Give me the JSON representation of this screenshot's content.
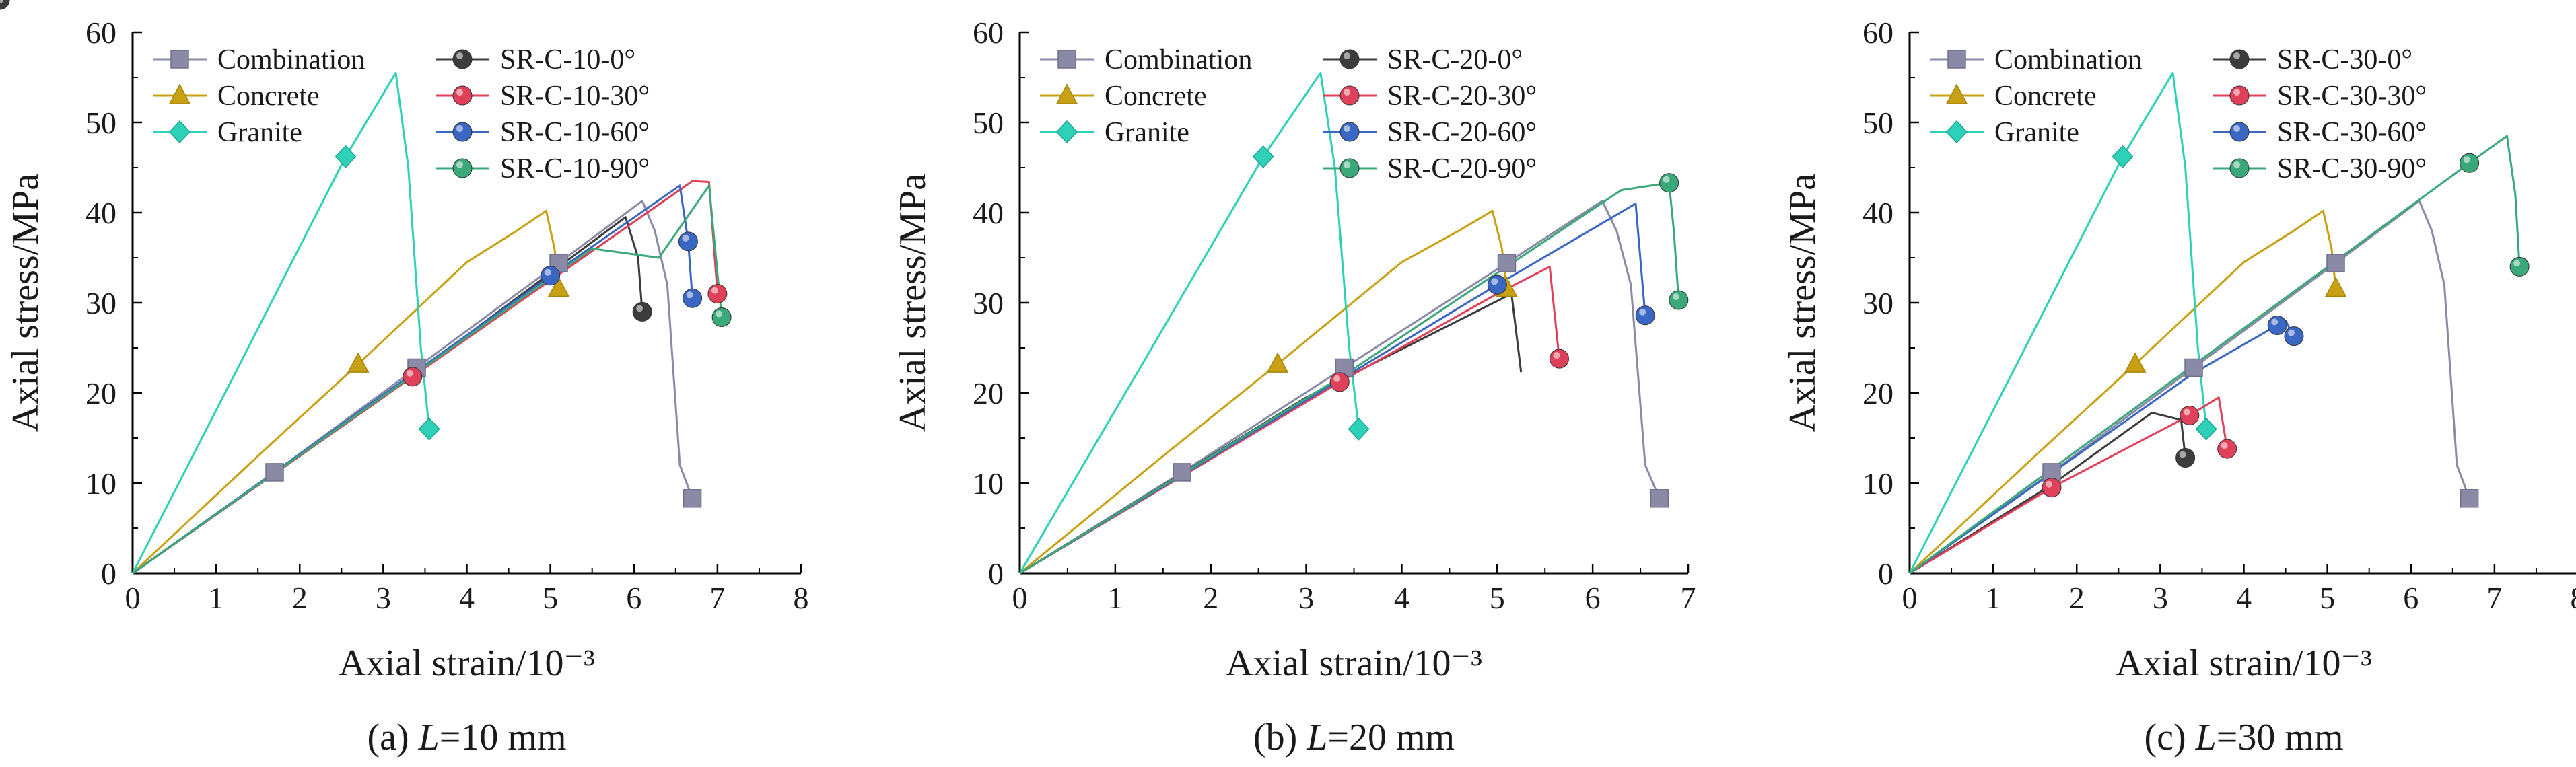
{
  "chart_data": [
    {
      "type": "line",
      "caption_prefix": "(a) ",
      "caption_italic": "L",
      "caption_suffix": "=10 mm",
      "xlabel": "Axial strain/10⁻³",
      "ylabel": "Axial stress/MPa",
      "xlim": [
        0,
        8
      ],
      "ylim": [
        0,
        60
      ],
      "xticks": [
        "0",
        "1",
        "2",
        "3",
        "4",
        "5",
        "6",
        "7",
        "8"
      ],
      "yticks": [
        "0",
        "10",
        "20",
        "30",
        "40",
        "50",
        "60"
      ],
      "legend": [
        "Combination",
        "Concrete",
        "Granite",
        "SR-C-10-0°",
        "SR-C-10-30°",
        "SR-C-10-60°",
        "SR-C-10-90°"
      ],
      "series": [
        {
          "name": "Combination",
          "color": "#8a8aa6",
          "marker": "square",
          "x": [
            0,
            1.7,
            3.4,
            5.1,
            6.1,
            6.25,
            6.4,
            6.55,
            6.7
          ],
          "y": [
            0,
            11.2,
            22.8,
            34.4,
            41.3,
            38,
            32,
            12,
            8.3
          ],
          "marker_index": [
            1,
            2,
            3,
            8
          ]
        },
        {
          "name": "Concrete",
          "color": "#c7a013",
          "marker": "triangle",
          "x": [
            0,
            1.5,
            2.7,
            4,
            4.6,
            4.95,
            5.05,
            5.1
          ],
          "y": [
            0,
            13,
            23.2,
            34.5,
            38,
            40.2,
            36,
            31.6
          ],
          "marker_index": [
            2,
            7
          ]
        },
        {
          "name": "Granite",
          "color": "#2ed1b8",
          "marker": "diamond",
          "x": [
            0,
            1.3,
            2.55,
            3.15,
            3.3,
            3.45,
            3.55
          ],
          "y": [
            0,
            23.5,
            46.2,
            55.5,
            45,
            25,
            16
          ],
          "marker_index": [
            2,
            6
          ]
        },
        {
          "name": "SR-C-10-0°",
          "color": "#3c3c3c",
          "marker": "ball",
          "x": [
            0,
            3,
            5.9,
            6.05,
            6.1
          ],
          "y": [
            0,
            19.5,
            39.5,
            35,
            29
          ],
          "marker_index": [
            4
          ]
        },
        {
          "name": "SR-C-10-30°",
          "color": "#e0415a",
          "marker": "ball",
          "x": [
            0,
            3.35,
            6.7,
            6.9,
            7
          ],
          "y": [
            0,
            21.8,
            43.5,
            43.4,
            31
          ],
          "marker_index": [
            1,
            4
          ]
        },
        {
          "name": "SR-C-10-60°",
          "color": "#3a66c4",
          "marker": "ball",
          "x": [
            0,
            5,
            6.55,
            6.65,
            6.7
          ],
          "y": [
            0,
            33,
            43,
            36.8,
            30.5
          ],
          "marker_index": [
            1,
            3,
            4
          ]
        },
        {
          "name": "SR-C-10-90°",
          "color": "#3aa878",
          "marker": "ball",
          "x": [
            0,
            5.5,
            6.3,
            6.9,
            7.05
          ],
          "y": [
            0,
            36,
            35,
            43,
            28.4
          ],
          "marker_index": [
            4
          ]
        }
      ]
    },
    {
      "type": "line",
      "caption_prefix": "(b) ",
      "caption_italic": "L",
      "caption_suffix": "=20 mm",
      "xlabel": "Axial strain/10⁻³",
      "ylabel": "Axial stress/MPa",
      "xlim": [
        0,
        7
      ],
      "ylim": [
        0,
        60
      ],
      "xticks": [
        "0",
        "1",
        "2",
        "3",
        "4",
        "5",
        "6",
        "7"
      ],
      "yticks": [
        "0",
        "10",
        "20",
        "30",
        "40",
        "50",
        "60"
      ],
      "legend": [
        "Combination",
        "Concrete",
        "Granite",
        "SR-C-20-0°",
        "SR-C-20-30°",
        "SR-C-20-60°",
        "SR-C-20-90°"
      ],
      "series": [
        {
          "name": "Combination",
          "color": "#8a8aa6",
          "marker": "square",
          "x": [
            0,
            1.7,
            3.4,
            5.1,
            6.1,
            6.25,
            6.4,
            6.55,
            6.7
          ],
          "y": [
            0,
            11.2,
            22.8,
            34.4,
            41.3,
            38,
            32,
            12,
            8.3
          ],
          "marker_index": [
            1,
            2,
            3,
            8
          ]
        },
        {
          "name": "Concrete",
          "color": "#c7a013",
          "marker": "triangle",
          "x": [
            0,
            1.5,
            2.7,
            4,
            4.6,
            4.95,
            5.05,
            5.1
          ],
          "y": [
            0,
            13,
            23.2,
            34.5,
            38,
            40.2,
            36,
            31.6
          ],
          "marker_index": [
            2,
            7
          ]
        },
        {
          "name": "Granite",
          "color": "#2ed1b8",
          "marker": "diamond",
          "x": [
            0,
            1.3,
            2.55,
            3.15,
            3.3,
            3.45,
            3.55
          ],
          "y": [
            0,
            23.5,
            46.2,
            55.5,
            45,
            25,
            16
          ],
          "marker_index": [
            2,
            6
          ]
        },
        {
          "name": "SR-C-20-0°",
          "color": "#3c3c3c",
          "marker": "ball",
          "x": [
            0,
            3,
            5.15,
            5.25
          ],
          "y": [
            0,
            19.5,
            31,
            22.3
          ],
          "marker_index": [
            4
          ]
        },
        {
          "name": "SR-C-20-30°",
          "color": "#e0415a",
          "marker": "ball",
          "x": [
            0,
            3.35,
            5,
            5.55,
            5.65
          ],
          "y": [
            0,
            21.2,
            31,
            34,
            23.8
          ],
          "marker_index": [
            1,
            4
          ]
        },
        {
          "name": "SR-C-20-60°",
          "color": "#3a66c4",
          "marker": "ball",
          "x": [
            0,
            5,
            6.45,
            6.55
          ],
          "y": [
            0,
            32,
            41,
            28.6
          ],
          "marker_index": [
            1,
            3
          ]
        },
        {
          "name": "SR-C-20-90°",
          "color": "#3aa878",
          "marker": "ball",
          "x": [
            0,
            3.4,
            6.3,
            6.8,
            6.85,
            6.9
          ],
          "y": [
            0,
            22,
            42.5,
            43.3,
            38,
            30.3
          ],
          "marker_index": [
            3,
            5
          ]
        }
      ]
    },
    {
      "type": "line",
      "caption_prefix": "(c) ",
      "caption_italic": "L",
      "caption_suffix": "=30 mm",
      "xlabel": "Axial strain/10⁻³",
      "ylabel": "Axial stress/MPa",
      "xlim": [
        0,
        8
      ],
      "ylim": [
        0,
        60
      ],
      "xticks": [
        "0",
        "1",
        "2",
        "3",
        "4",
        "5",
        "6",
        "7",
        "8"
      ],
      "yticks": [
        "0",
        "10",
        "20",
        "30",
        "40",
        "50",
        "60"
      ],
      "legend": [
        "Combination",
        "Concrete",
        "Granite",
        "SR-C-30-0°",
        "SR-C-30-30°",
        "SR-C-30-60°",
        "SR-C-30-90°"
      ],
      "series": [
        {
          "name": "Combination",
          "color": "#8a8aa6",
          "marker": "square",
          "x": [
            0,
            1.7,
            3.4,
            5.1,
            6.1,
            6.25,
            6.4,
            6.55,
            6.7
          ],
          "y": [
            0,
            11.2,
            22.8,
            34.4,
            41.3,
            38,
            32,
            12,
            8.3
          ],
          "marker_index": [
            1,
            2,
            3,
            8
          ]
        },
        {
          "name": "Concrete",
          "color": "#c7a013",
          "marker": "triangle",
          "x": [
            0,
            1.5,
            2.7,
            4,
            4.6,
            4.95,
            5.05,
            5.1
          ],
          "y": [
            0,
            13,
            23.2,
            34.5,
            38,
            40.2,
            36,
            31.6
          ],
          "marker_index": [
            2,
            7
          ]
        },
        {
          "name": "Granite",
          "color": "#2ed1b8",
          "marker": "diamond",
          "x": [
            0,
            1.3,
            2.55,
            3.15,
            3.3,
            3.45,
            3.55
          ],
          "y": [
            0,
            23.5,
            46.2,
            55.5,
            45,
            25,
            16
          ],
          "marker_index": [
            2,
            6
          ]
        },
        {
          "name": "SR-C-30-0°",
          "color": "#3c3c3c",
          "marker": "ball",
          "x": [
            0,
            1.7,
            2.9,
            3.25,
            3.3
          ],
          "y": [
            0,
            9.8,
            17.8,
            17,
            12.8
          ],
          "marker_index": [
            4
          ]
        },
        {
          "name": "SR-C-30-30°",
          "color": "#e0415a",
          "marker": "ball",
          "x": [
            0,
            1.7,
            3.35,
            3.7,
            3.8
          ],
          "y": [
            0,
            9.5,
            17.5,
            19.5,
            13.8
          ],
          "marker_index": [
            1,
            2,
            4
          ]
        },
        {
          "name": "SR-C-30-60°",
          "color": "#3a66c4",
          "marker": "ball",
          "x": [
            0,
            3.4,
            4.4,
            4.5,
            4.6
          ],
          "y": [
            0,
            22.2,
            27.5,
            28,
            26.3
          ],
          "marker_index": [
            2,
            4
          ]
        },
        {
          "name": "SR-C-30-90°",
          "color": "#3aa878",
          "marker": "ball",
          "x": [
            0,
            6.7,
            7.15,
            7.25,
            7.3
          ],
          "y": [
            0,
            45.5,
            48.5,
            42,
            34
          ],
          "marker_index": [
            1,
            4
          ]
        }
      ]
    }
  ]
}
